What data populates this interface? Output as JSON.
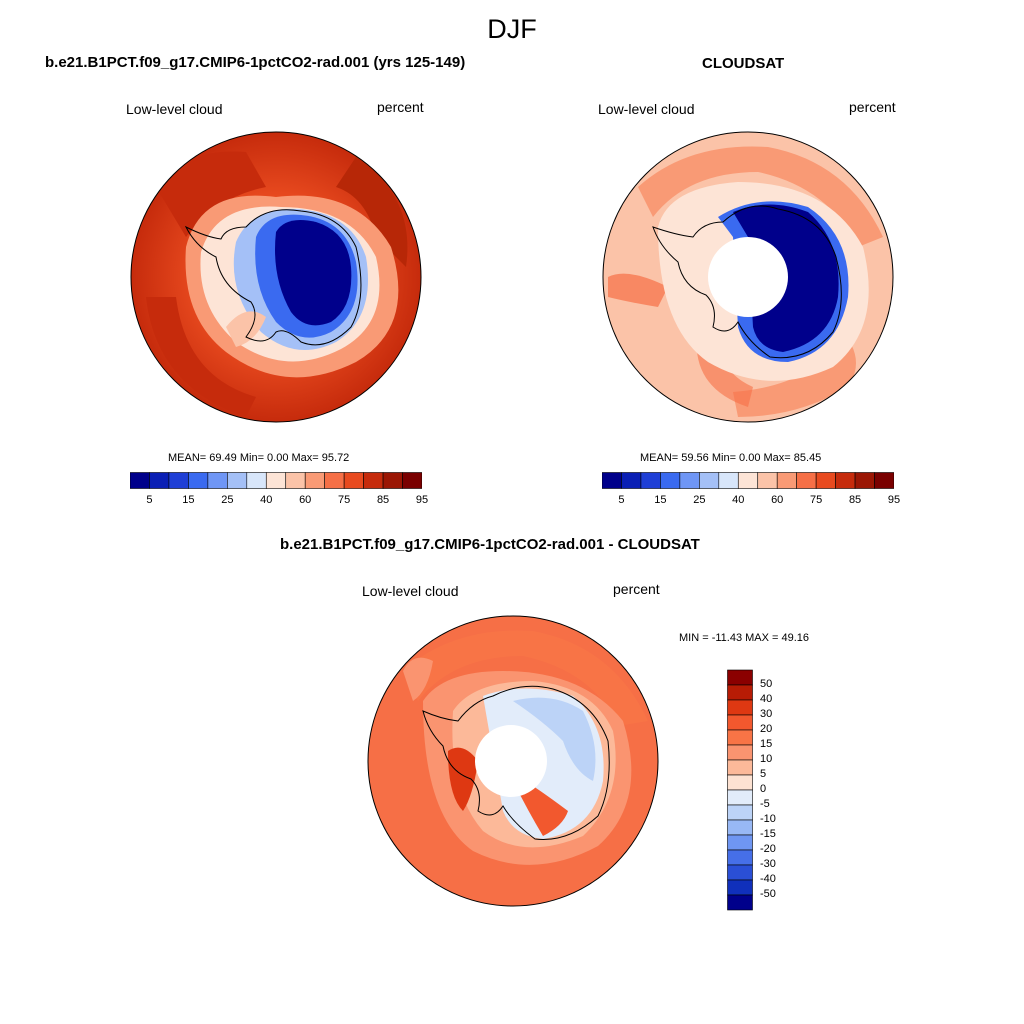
{
  "title": "DJF",
  "panels": [
    {
      "title": "b.e21.B1PCT.f09_g17.CMIP6-1pctCO2-rad.001 (yrs 125-149)",
      "left_label": "Low-level cloud",
      "right_label": "percent",
      "stats": "MEAN=  69.49  Min=   0.00  Max=  95.72"
    },
    {
      "title": "CLOUDSAT",
      "left_label": "Low-level cloud",
      "right_label": "percent",
      "stats": "MEAN=  59.56  Min=   0.00  Max=  85.45"
    },
    {
      "title": "b.e21.B1PCT.f09_g17.CMIP6-1pctCO2-rad.001 - CLOUDSAT",
      "left_label": "Low-level cloud",
      "right_label": "percent",
      "stats": "MIN = -11.43 MAX =  49.16"
    }
  ],
  "colorbar_field": {
    "labels": [
      "5",
      "15",
      "25",
      "40",
      "60",
      "75",
      "85",
      "95"
    ],
    "colors": [
      "#00008b",
      "#0a1fb5",
      "#1f3fd6",
      "#3a6af0",
      "#6f96f5",
      "#a4c0f7",
      "#d8e6fa",
      "#fde4d6",
      "#fbc3a8",
      "#f99a75",
      "#f66f46",
      "#e84a1f",
      "#c62b0c",
      "#9b1604",
      "#7a0000"
    ]
  },
  "colorbar_diff": {
    "labels": [
      "50",
      "40",
      "30",
      "20",
      "15",
      "10",
      "5",
      "0",
      "-5",
      "-10",
      "-15",
      "-20",
      "-30",
      "-40",
      "-50"
    ],
    "colors": [
      "#8b0000",
      "#b71c05",
      "#de3812",
      "#f2582e",
      "#f87446",
      "#fa9470",
      "#fcb999",
      "#fde2d2",
      "#e2ecfa",
      "#bcd3f7",
      "#98b8f5",
      "#6f96f2",
      "#466fe8",
      "#2a4fd6",
      "#1030bb",
      "#00008b"
    ]
  }
}
